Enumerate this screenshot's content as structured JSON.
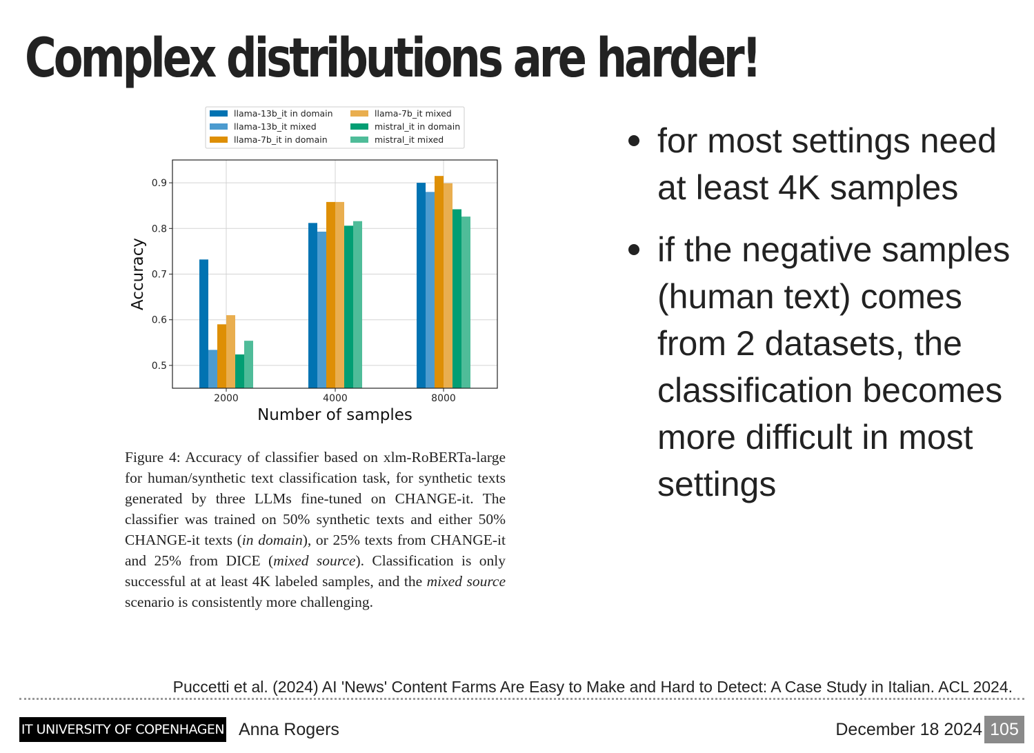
{
  "slide": {
    "title": "Complex distributions are harder!",
    "bullets": [
      "for most settings need at least 4K samples",
      "if the negative samples (human text) comes from 2 datasets, the classification becomes more difficult in most settings"
    ],
    "caption": {
      "p1": "Figure 4:  Accuracy of classifier based on xlm-RoBERTa-large for human/synthetic text classification task, for synthetic texts generated by three LLMs fine-tuned on CHANGE-it.  The classifier was trained on 50% synthetic texts and either 50% CHANGE-it texts (",
      "em1": "in domain",
      "p2": "), or 25% texts from CHANGE-it and 25% from DICE (",
      "em2": "mixed source",
      "p3": "). Classification is only successful at at least 4K labeled samples, and the ",
      "em3": "mixed source",
      "p4": " scenario is consistently more challenging."
    },
    "reference": "Puccetti et al. (2024) AI 'News' Content Farms Are Easy to Make and Hard to Detect: A Case Study in Italian. ACL 2024.",
    "footer": {
      "logo": "IT UNIVERSITY OF COPENHAGEN",
      "author": "Anna Rogers",
      "date": "December 18 2024",
      "page": "105"
    }
  },
  "chart_data": {
    "type": "bar",
    "categories": [
      "2000",
      "4000",
      "8000"
    ],
    "xlabel": "Number of samples",
    "ylabel": "Accuracy",
    "ylim": [
      0.45,
      0.95
    ],
    "yticks": [
      "0.5",
      "0.6",
      "0.7",
      "0.8",
      "0.9"
    ],
    "grid": true,
    "legend_position": "top",
    "series": [
      {
        "name": "llama-13b_it in domain",
        "color": "#0173b2",
        "values": [
          0.732,
          0.812,
          0.9
        ]
      },
      {
        "name": "llama-13b_it mixed",
        "color": "#4c9bcf",
        "values": [
          0.534,
          0.793,
          0.88
        ]
      },
      {
        "name": "llama-7b_it in domain",
        "color": "#de8f05",
        "values": [
          0.59,
          0.858,
          0.915
        ]
      },
      {
        "name": "llama-7b_it mixed",
        "color": "#e9ae4f",
        "values": [
          0.61,
          0.858,
          0.899
        ]
      },
      {
        "name": "mistral_it in domain",
        "color": "#029e73",
        "values": [
          0.524,
          0.806,
          0.842
        ]
      },
      {
        "name": "mistral_it mixed",
        "color": "#4fbc99",
        "values": [
          0.554,
          0.816,
          0.826
        ]
      }
    ]
  }
}
